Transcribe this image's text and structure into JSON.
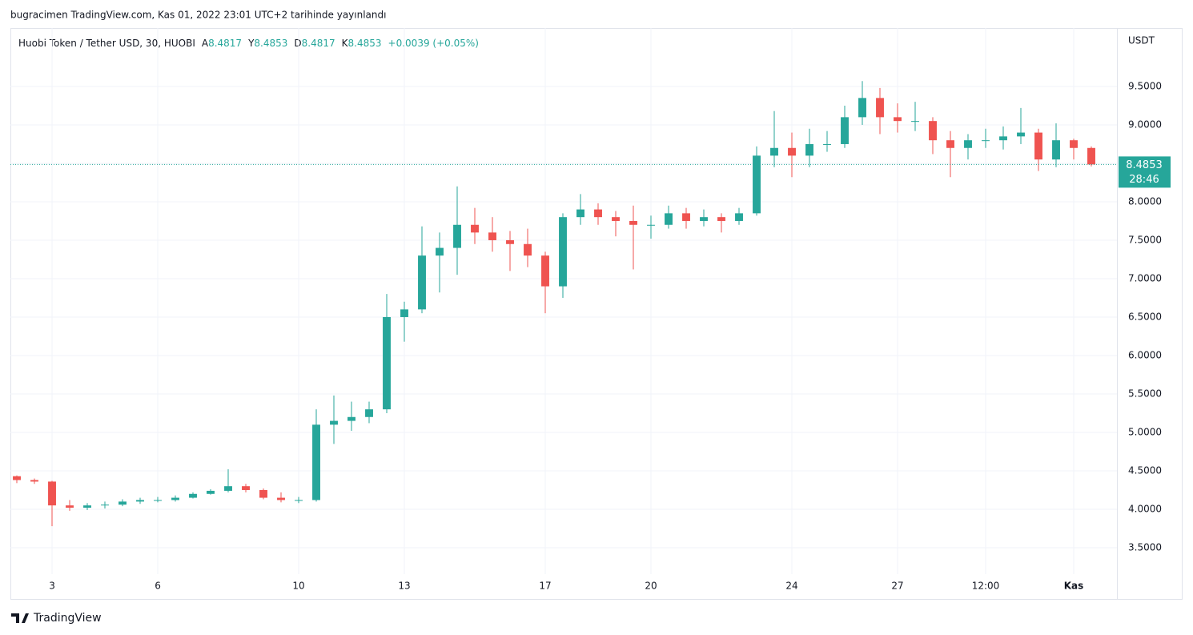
{
  "header": {
    "published": "bugracimen TradingView.com, Kas 01, 2022 23:01 UTC+2 tarihinde yayınlandı"
  },
  "footer": {
    "brand": "TradingView"
  },
  "chart_data": {
    "type": "candlestick",
    "legend": {
      "symbol": "Huobi Token / Tether USD, 30, HUOBI",
      "items": [
        {
          "key": "A",
          "value": 8.4817
        },
        {
          "key": "Y",
          "value": 8.4853
        },
        {
          "key": "D",
          "value": 8.4817
        },
        {
          "key": "K",
          "value": 8.4853
        }
      ],
      "change": "+0.0039 (+0.05%)"
    },
    "y_axis_title": "USDT",
    "countdown": "28:46",
    "up_color": "#26a69a",
    "down_color": "#ef5350",
    "grid": true,
    "x": [
      2,
      2.5,
      3,
      3.5,
      4,
      4.5,
      5,
      5.5,
      6,
      6.5,
      7,
      7.5,
      8,
      8.5,
      9,
      9.5,
      10,
      10.5,
      11,
      11.5,
      12,
      12.5,
      13,
      13.5,
      14,
      14.5,
      15,
      15.5,
      16,
      16.5,
      17,
      17.5,
      18,
      18.5,
      19,
      19.5,
      20,
      20.5,
      21,
      21.5,
      22,
      22.5,
      23,
      23.5,
      24,
      24.5,
      25,
      25.5,
      26,
      26.5,
      27,
      27.5,
      28,
      28.5,
      29,
      29.5,
      30,
      30.5,
      31,
      31.5,
      32,
      32.5
    ],
    "open": [
      4.43,
      4.38,
      4.36,
      4.05,
      4.02,
      4.05,
      4.06,
      4.1,
      4.12,
      4.12,
      4.15,
      4.2,
      4.24,
      4.3,
      4.25,
      4.15,
      4.12,
      4.12,
      5.1,
      5.15,
      5.2,
      5.3,
      6.5,
      6.6,
      7.3,
      7.4,
      7.7,
      7.6,
      7.5,
      7.45,
      7.3,
      6.9,
      7.8,
      7.9,
      7.8,
      7.75,
      7.7,
      7.7,
      7.85,
      7.75,
      7.8,
      7.75,
      7.85,
      8.6,
      8.7,
      8.6,
      8.75,
      8.75,
      9.1,
      9.35,
      9.1,
      9.05,
      9.05,
      8.8,
      8.7,
      8.8,
      8.8,
      8.85,
      8.9,
      8.55,
      8.8,
      8.7
    ],
    "high": [
      4.44,
      4.4,
      4.37,
      4.12,
      4.08,
      4.1,
      4.13,
      4.15,
      4.16,
      4.18,
      4.22,
      4.26,
      4.52,
      4.33,
      4.27,
      4.22,
      4.16,
      5.3,
      5.48,
      5.4,
      5.4,
      6.8,
      6.7,
      7.68,
      7.6,
      8.2,
      7.92,
      7.8,
      7.62,
      7.65,
      7.35,
      7.85,
      8.1,
      7.98,
      7.88,
      7.95,
      7.82,
      7.95,
      7.92,
      7.9,
      7.85,
      7.92,
      8.72,
      9.18,
      8.9,
      8.95,
      8.92,
      9.25,
      9.57,
      9.48,
      9.28,
      9.3,
      9.1,
      8.92,
      8.88,
      8.95,
      8.98,
      9.22,
      8.95,
      9.02,
      8.82,
      8.72
    ],
    "low": [
      4.34,
      4.33,
      3.78,
      3.98,
      3.99,
      4.01,
      4.04,
      4.07,
      4.09,
      4.1,
      4.14,
      4.19,
      4.22,
      4.22,
      4.13,
      4.09,
      4.08,
      4.1,
      4.85,
      5.02,
      5.12,
      5.25,
      6.18,
      6.55,
      6.82,
      7.05,
      7.45,
      7.35,
      7.1,
      7.15,
      6.55,
      6.75,
      7.7,
      7.7,
      7.55,
      7.12,
      7.52,
      7.65,
      7.65,
      7.68,
      7.6,
      7.7,
      7.82,
      8.45,
      8.32,
      8.45,
      8.65,
      8.7,
      9.0,
      8.88,
      8.9,
      8.92,
      8.62,
      8.32,
      8.55,
      8.7,
      8.68,
      8.75,
      8.4,
      8.45,
      8.55,
      8.46
    ],
    "close": [
      4.38,
      4.36,
      4.05,
      4.02,
      4.05,
      4.06,
      4.1,
      4.12,
      4.12,
      4.15,
      4.2,
      4.24,
      4.3,
      4.25,
      4.15,
      4.12,
      4.12,
      5.1,
      5.15,
      5.2,
      5.3,
      6.5,
      6.6,
      7.3,
      7.4,
      7.7,
      7.6,
      7.5,
      7.45,
      7.3,
      6.9,
      7.8,
      7.9,
      7.8,
      7.75,
      7.7,
      7.7,
      7.85,
      7.75,
      7.8,
      7.75,
      7.85,
      8.6,
      8.7,
      8.6,
      8.75,
      8.75,
      9.1,
      9.35,
      9.1,
      9.05,
      9.05,
      8.8,
      8.7,
      8.8,
      8.8,
      8.85,
      8.9,
      8.55,
      8.8,
      8.7,
      8.4853
    ],
    "xlim": [
      1.818,
      33.227
    ],
    "xticks": [
      3,
      6,
      10,
      13,
      17,
      20,
      24,
      27,
      {
        "value": 29.5,
        "label": "12:00"
      },
      {
        "value": 32,
        "label": "Kas"
      }
    ],
    "ylim": [
      3.156,
      10.26
    ],
    "yticks": [
      {
        "value": 3.5,
        "label": "3.5000"
      },
      {
        "value": 4,
        "label": "4.0000"
      },
      {
        "value": 4.5,
        "label": "4.5000"
      },
      {
        "value": 5,
        "label": "5.0000"
      },
      {
        "value": 5.5,
        "label": "5.5000"
      },
      {
        "value": 6,
        "label": "6.0000"
      },
      {
        "value": 6.5,
        "label": "6.5000"
      },
      {
        "value": 7,
        "label": "7.0000"
      },
      {
        "value": 7.5,
        "label": "7.5000"
      },
      {
        "value": 8,
        "label": "8.0000"
      },
      {
        "value": 8.5,
        "label": "8.5000"
      },
      {
        "value": 9,
        "label": "9.0000"
      },
      {
        "value": 9.5,
        "label": "9.5000"
      }
    ]
  }
}
